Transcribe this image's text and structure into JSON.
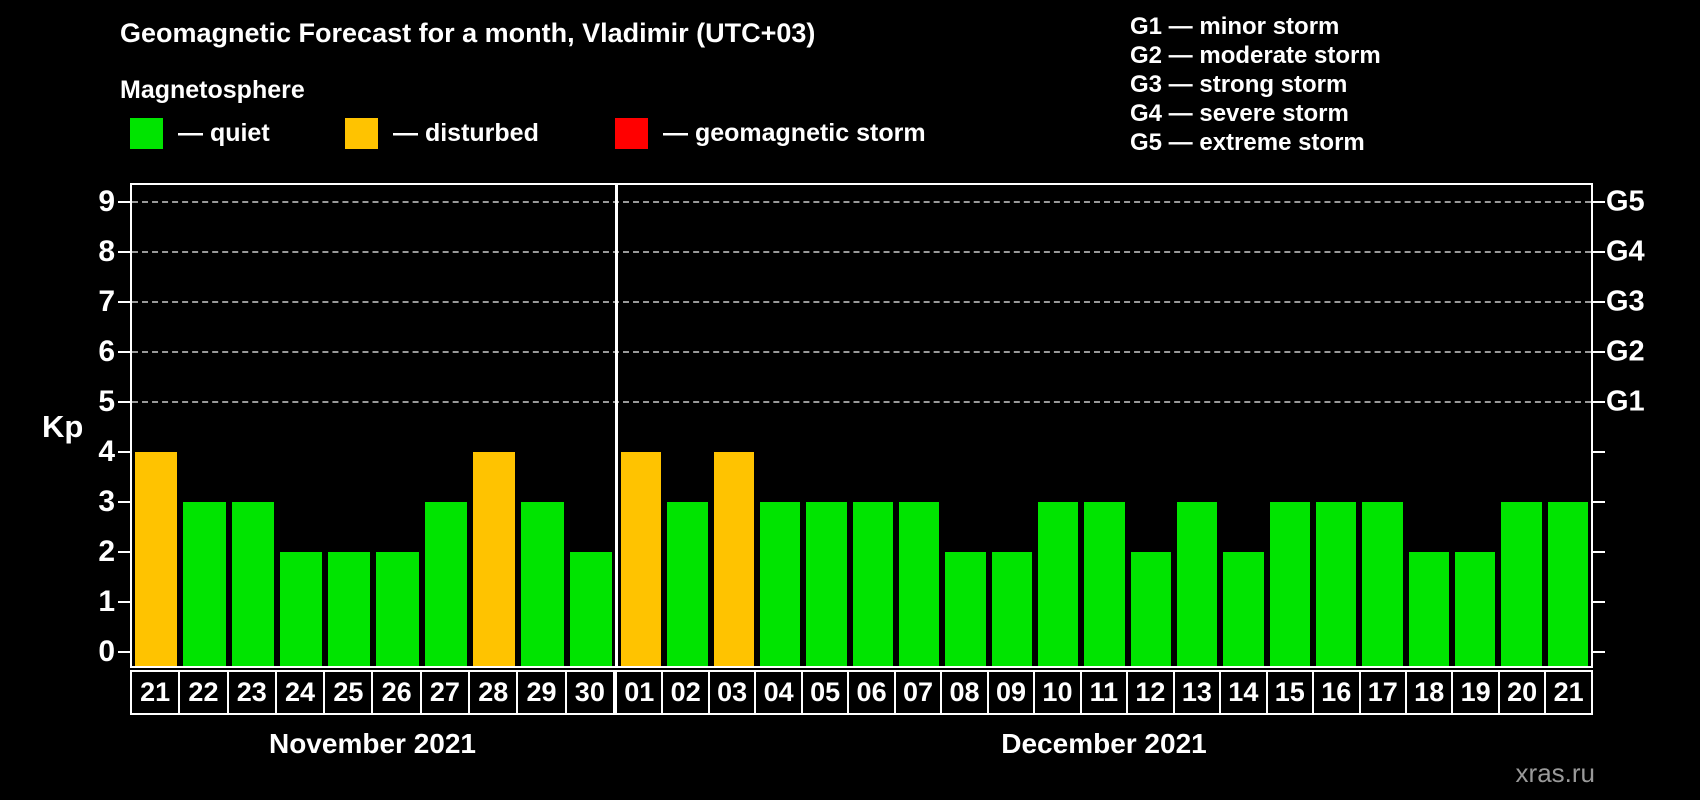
{
  "title": "Geomagnetic Forecast for a month, Vladimir (UTC+03)",
  "subtitle": "Magnetosphere",
  "legend": {
    "items": [
      {
        "label": "— quiet",
        "color_key": "quiet"
      },
      {
        "label": "— disturbed",
        "color_key": "disturbed"
      },
      {
        "label": "— geomagnetic storm",
        "color_key": "storm"
      }
    ]
  },
  "g_scale_legend": [
    "G1 — minor storm",
    "G2 — moderate storm",
    "G3 — strong storm",
    "G4 — severe storm",
    "G5 — extreme storm"
  ],
  "watermark": "xras.ru",
  "chart_data": {
    "type": "bar",
    "title": "Geomagnetic Forecast for a month, Vladimir (UTC+03)",
    "xlabel": "",
    "ylabel": "Kp",
    "ylim": [
      0,
      9
    ],
    "yticks": [
      0,
      1,
      2,
      3,
      4,
      5,
      6,
      7,
      8,
      9
    ],
    "grid_values": [
      5,
      6,
      7,
      8,
      9
    ],
    "grid": "dashed horizontal at Kp 5-9",
    "legend_position": "top",
    "right_axis": [
      {
        "value": 5,
        "label": "G1"
      },
      {
        "value": 6,
        "label": "G2"
      },
      {
        "value": 7,
        "label": "G3"
      },
      {
        "value": 8,
        "label": "G4"
      },
      {
        "value": 9,
        "label": "G5"
      }
    ],
    "colors": {
      "quiet": "#00e400",
      "disturbed": "#ffc300",
      "storm": "#ff0000",
      "axis": "#ffffff",
      "grid_color": "#9a9a9a",
      "background": "#000000"
    },
    "months": [
      {
        "label": "November 2021",
        "days": [
          "21",
          "22",
          "23",
          "24",
          "25",
          "26",
          "27",
          "28",
          "29",
          "30"
        ],
        "values": [
          4,
          3,
          3,
          2,
          2,
          2,
          3,
          4,
          3,
          2
        ],
        "status": [
          "disturbed",
          "quiet",
          "quiet",
          "quiet",
          "quiet",
          "quiet",
          "quiet",
          "disturbed",
          "quiet",
          "quiet"
        ]
      },
      {
        "label": "December 2021",
        "days": [
          "01",
          "02",
          "03",
          "04",
          "05",
          "06",
          "07",
          "08",
          "09",
          "10",
          "11",
          "12",
          "13",
          "14",
          "15",
          "16",
          "17",
          "18",
          "19",
          "20",
          "21"
        ],
        "values": [
          4,
          3,
          4,
          3,
          3,
          3,
          3,
          2,
          2,
          3,
          3,
          2,
          3,
          2,
          3,
          3,
          3,
          2,
          2,
          3,
          3
        ],
        "status": [
          "disturbed",
          "quiet",
          "disturbed",
          "quiet",
          "quiet",
          "quiet",
          "quiet",
          "quiet",
          "quiet",
          "quiet",
          "quiet",
          "quiet",
          "quiet",
          "quiet",
          "quiet",
          "quiet",
          "quiet",
          "quiet",
          "quiet",
          "quiet",
          "quiet"
        ]
      }
    ]
  }
}
